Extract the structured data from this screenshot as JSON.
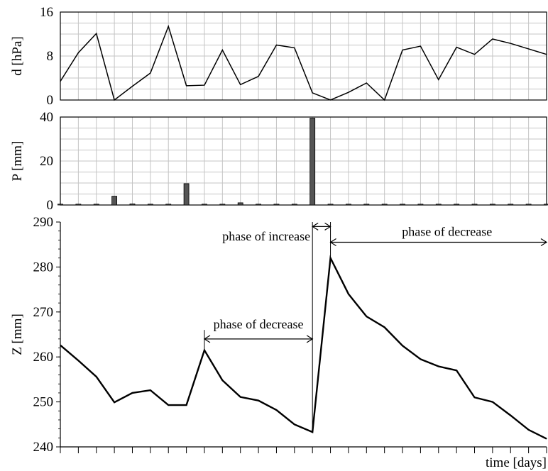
{
  "chart_data": [
    {
      "id": "d",
      "type": "line",
      "ylabel": "d [hPa]",
      "ylim": [
        0,
        16
      ],
      "yticks": [
        0,
        8,
        16
      ],
      "x": [
        0,
        1,
        2,
        3,
        4,
        5,
        6,
        7,
        8,
        9,
        10,
        11,
        12,
        13,
        14,
        15,
        16,
        17,
        18,
        19,
        20,
        21,
        22,
        23,
        24,
        25,
        26,
        27
      ],
      "values": [
        3.4,
        8.6,
        12.1,
        0,
        2.5,
        4.9,
        13.4,
        2.6,
        2.7,
        9.1,
        2.8,
        4.3,
        10.0,
        9.5,
        1.3,
        0,
        1.4,
        3.1,
        0,
        9.1,
        9.8,
        3.7,
        9.6,
        8.3,
        11.1,
        10.3,
        9.3,
        8.3
      ],
      "grid": true
    },
    {
      "id": "P",
      "type": "bar",
      "ylabel": "P [mm]",
      "ylim": [
        0,
        40
      ],
      "yticks": [
        0,
        20,
        40
      ],
      "x": [
        0,
        1,
        2,
        3,
        4,
        5,
        6,
        7,
        8,
        9,
        10,
        11,
        12,
        13,
        14,
        15,
        16,
        17,
        18,
        19,
        20,
        21,
        22,
        23,
        24,
        25,
        26,
        27
      ],
      "values": [
        0,
        0,
        0,
        4.0,
        0.5,
        0,
        0,
        9.7,
        0,
        0,
        1.0,
        0,
        0,
        0,
        39.5,
        0,
        0,
        0,
        0,
        0,
        0,
        0,
        0,
        0,
        0,
        0,
        0,
        0
      ],
      "grid": true
    },
    {
      "id": "Z",
      "type": "line",
      "ylabel": "Z [mm]",
      "xlabel": "time [days]",
      "ylim": [
        240,
        290
      ],
      "yticks": [
        240,
        250,
        260,
        270,
        280,
        290
      ],
      "x": [
        0,
        1,
        2,
        3,
        4,
        5,
        6,
        7,
        8,
        9,
        10,
        11,
        12,
        13,
        14,
        15,
        16,
        17,
        18,
        19,
        20,
        21,
        22,
        23,
        24,
        25,
        26,
        27
      ],
      "values": [
        262.6,
        259.2,
        255.6,
        249.9,
        252.0,
        252.6,
        249.3,
        249.3,
        261.5,
        254.8,
        251.1,
        250.3,
        248.2,
        245.0,
        243.3,
        282.0,
        274.0,
        269.0,
        266.6,
        262.5,
        259.5,
        257.9,
        257.0,
        251.0,
        250.0,
        247.0,
        243.8,
        241.8
      ],
      "grid": false,
      "annotations": [
        {
          "text": "phase of decrease",
          "arrow_from_x": 8,
          "arrow_to_x": 14,
          "arrow_y": 264
        },
        {
          "text": "phase of increase",
          "arrow_from_x": 14,
          "arrow_to_x": 15,
          "arrow_y": 289
        },
        {
          "text": "phase of decrease",
          "arrow_from_x": 15,
          "arrow_to_x": 27,
          "arrow_y": 285.5
        }
      ]
    }
  ]
}
